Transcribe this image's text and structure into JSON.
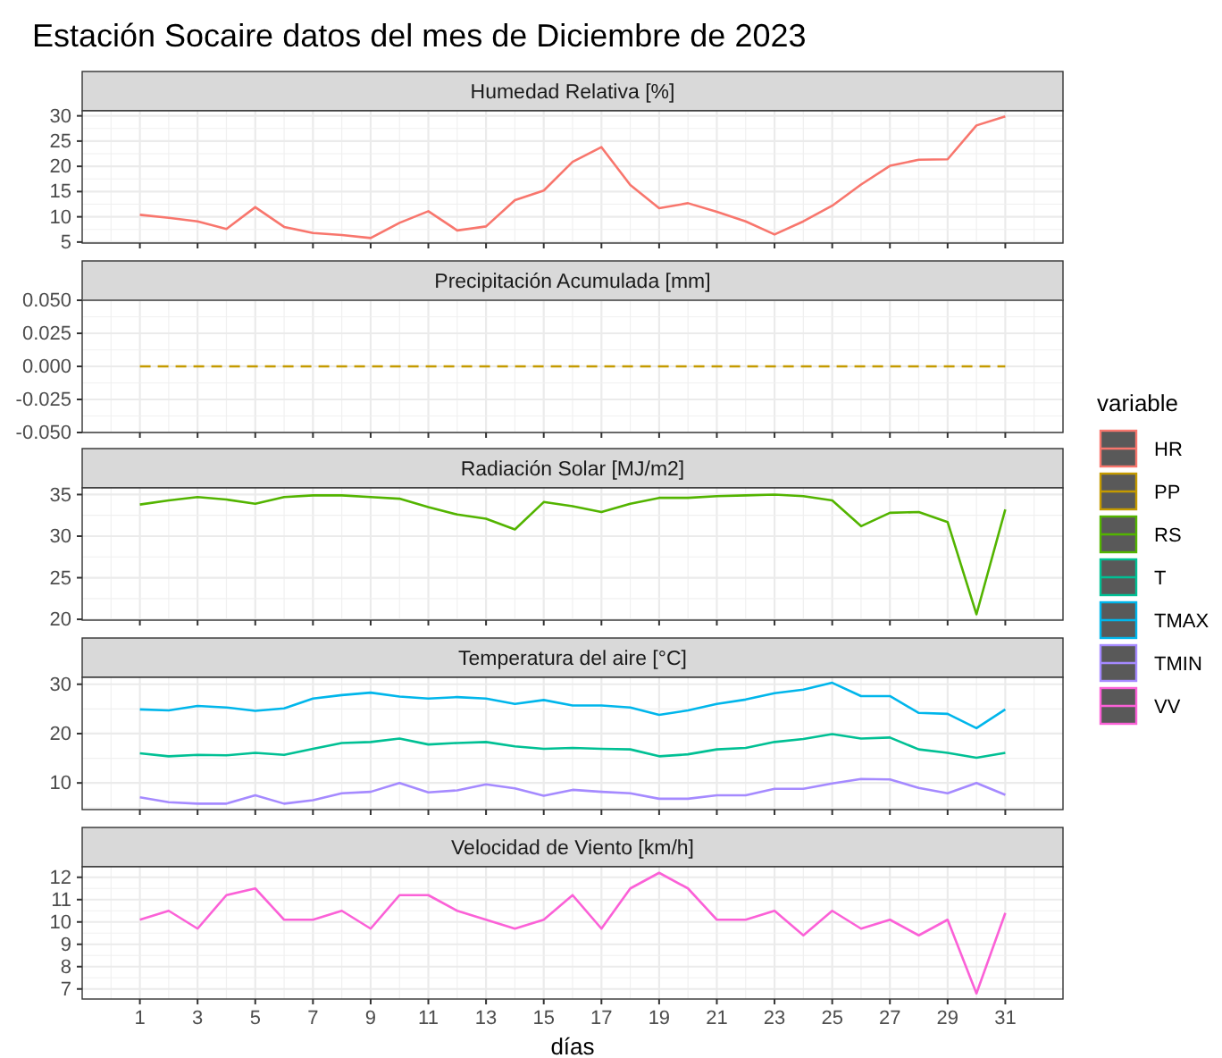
{
  "chart_data": [
    {
      "type": "line",
      "title": "Estación Socaire datos del mes de Diciembre de 2023",
      "subtitle": "Humedad Relativa [%]",
      "x": [
        1,
        2,
        3,
        4,
        5,
        6,
        7,
        8,
        9,
        10,
        11,
        12,
        13,
        14,
        15,
        16,
        17,
        18,
        19,
        20,
        21,
        22,
        23,
        24,
        25,
        26,
        27,
        28,
        29,
        30,
        31
      ],
      "xlim": [
        -1,
        33
      ],
      "xticks": [
        1,
        3,
        5,
        7,
        9,
        11,
        13,
        15,
        17,
        19,
        21,
        23,
        25,
        27,
        29,
        31
      ],
      "ylim": [
        4.8,
        31
      ],
      "yticks": [
        5,
        10,
        15,
        20,
        25,
        30
      ],
      "grid": true,
      "legend": "right",
      "legend_title": "variable",
      "tick_labels": "y",
      "series": [
        {
          "name": "HR",
          "color": "#f8766d",
          "values": [
            10.4,
            9.8,
            9.1,
            7.6,
            11.9,
            8.0,
            6.8,
            6.4,
            5.8,
            8.8,
            11.1,
            7.3,
            8.1,
            13.3,
            15.2,
            20.9,
            23.8,
            16.3,
            11.7,
            12.7,
            11.0,
            9.1,
            6.5,
            9.1,
            12.2,
            16.4,
            20.1,
            21.3,
            21.4,
            28.1,
            29.9
          ]
        }
      ]
    },
    {
      "type": "line",
      "title": "Precipitación Acumulada [mm]",
      "x": [
        1,
        2,
        3,
        4,
        5,
        6,
        7,
        8,
        9,
        10,
        11,
        12,
        13,
        14,
        15,
        16,
        17,
        18,
        19,
        20,
        21,
        22,
        23,
        24,
        25,
        26,
        27,
        28,
        29,
        30,
        31
      ],
      "xlim": [
        -1,
        33
      ],
      "xticks": [
        1,
        3,
        5,
        7,
        9,
        11,
        13,
        15,
        17,
        19,
        21,
        23,
        25,
        27,
        29,
        31
      ],
      "ylim": [
        -0.05,
        0.05
      ],
      "yticks": [
        {
          "value": -0.05,
          "label": "-0.050"
        },
        {
          "value": -0.025,
          "label": "-0.025"
        },
        {
          "value": 0,
          "label": "0.000"
        },
        {
          "value": 0.025,
          "label": "0.025"
        },
        {
          "value": 0.05,
          "label": "0.050"
        }
      ],
      "grid": true,
      "legend": "right",
      "tick_labels": "y",
      "series": [
        {
          "name": "PP",
          "color": "#c49a00",
          "line_style": "dashed",
          "values": [
            0,
            0,
            0,
            0,
            0,
            0,
            0,
            0,
            0,
            0,
            0,
            0,
            0,
            0,
            0,
            0,
            0,
            0,
            0,
            0,
            0,
            0,
            0,
            0,
            0,
            0,
            0,
            0,
            0,
            0,
            0
          ]
        }
      ]
    },
    {
      "type": "line",
      "title": "Radiación Solar [MJ/m2]",
      "x": [
        1,
        2,
        3,
        4,
        5,
        6,
        7,
        8,
        9,
        10,
        11,
        12,
        13,
        14,
        15,
        16,
        17,
        18,
        19,
        20,
        21,
        22,
        23,
        24,
        25,
        26,
        27,
        28,
        29,
        30,
        31
      ],
      "xlim": [
        -1,
        33
      ],
      "xticks": [
        1,
        3,
        5,
        7,
        9,
        11,
        13,
        15,
        17,
        19,
        21,
        23,
        25,
        27,
        29,
        31
      ],
      "ylim": [
        19.9,
        35.8
      ],
      "yticks": [
        20,
        25,
        30,
        35
      ],
      "grid": true,
      "legend": "right",
      "tick_labels": "y",
      "series": [
        {
          "name": "RS",
          "color": "#53b400",
          "values": [
            33.8,
            34.3,
            34.7,
            34.4,
            33.9,
            34.7,
            34.9,
            34.9,
            34.7,
            34.5,
            33.5,
            32.6,
            32.1,
            30.8,
            34.1,
            33.6,
            32.9,
            33.9,
            34.6,
            34.6,
            34.8,
            34.9,
            35.0,
            34.8,
            34.3,
            31.2,
            32.8,
            32.9,
            31.7,
            20.6,
            33.2
          ]
        }
      ]
    },
    {
      "type": "line",
      "title": "Temperatura del aire [°C]",
      "x": [
        1,
        2,
        3,
        4,
        5,
        6,
        7,
        8,
        9,
        10,
        11,
        12,
        13,
        14,
        15,
        16,
        17,
        18,
        19,
        20,
        21,
        22,
        23,
        24,
        25,
        26,
        27,
        28,
        29,
        30,
        31
      ],
      "xlim": [
        -1,
        33
      ],
      "xticks": [
        1,
        3,
        5,
        7,
        9,
        11,
        13,
        15,
        17,
        19,
        21,
        23,
        25,
        27,
        29,
        31
      ],
      "ylim": [
        4.6,
        31.4
      ],
      "yticks": [
        10,
        20,
        30
      ],
      "grid": true,
      "legend": "right",
      "tick_labels": "y",
      "series": [
        {
          "name": "T",
          "color": "#00c094",
          "values": [
            16.0,
            15.4,
            15.7,
            15.6,
            16.1,
            15.7,
            16.9,
            18.1,
            18.3,
            19.0,
            17.8,
            18.1,
            18.3,
            17.4,
            16.9,
            17.1,
            16.9,
            16.8,
            15.4,
            15.8,
            16.8,
            17.1,
            18.3,
            18.9,
            19.9,
            19.0,
            19.2,
            16.8,
            16.1,
            15.1,
            16.1
          ]
        },
        {
          "name": "TMAX",
          "color": "#00b6eb",
          "values": [
            24.9,
            24.7,
            25.6,
            25.3,
            24.6,
            25.1,
            27.1,
            27.8,
            28.3,
            27.5,
            27.1,
            27.4,
            27.1,
            26.0,
            26.8,
            25.7,
            25.7,
            25.3,
            23.8,
            24.7,
            26.0,
            26.9,
            28.2,
            28.9,
            30.3,
            27.6,
            27.6,
            24.2,
            24.0,
            21.1,
            24.9
          ]
        },
        {
          "name": "TMIN",
          "color": "#a58aff",
          "values": [
            7.1,
            6.1,
            5.8,
            5.8,
            7.5,
            5.8,
            6.5,
            7.9,
            8.2,
            10.0,
            8.1,
            8.5,
            9.7,
            8.9,
            7.4,
            8.6,
            8.2,
            7.9,
            6.8,
            6.8,
            7.5,
            7.5,
            8.8,
            8.8,
            9.9,
            10.8,
            10.7,
            9.0,
            7.9,
            10.0,
            7.6
          ]
        }
      ]
    },
    {
      "type": "line",
      "title": "Velocidad de Viento [km/h]",
      "xlabel": "días",
      "x": [
        1,
        2,
        3,
        4,
        5,
        6,
        7,
        8,
        9,
        10,
        11,
        12,
        13,
        14,
        15,
        16,
        17,
        18,
        19,
        20,
        21,
        22,
        23,
        24,
        25,
        26,
        27,
        28,
        29,
        30,
        31
      ],
      "xlim": [
        -1,
        33
      ],
      "xticks": [
        1,
        3,
        5,
        7,
        9,
        11,
        13,
        15,
        17,
        19,
        21,
        23,
        25,
        27,
        29,
        31
      ],
      "ylim": [
        6.55,
        12.47
      ],
      "yticks": [
        7,
        8,
        9,
        10,
        11,
        12
      ],
      "grid": true,
      "legend": "right",
      "series": [
        {
          "name": "VV",
          "color": "#fb61d7",
          "values": [
            10.1,
            10.5,
            9.7,
            11.2,
            11.5,
            10.1,
            10.1,
            10.5,
            9.7,
            11.2,
            11.2,
            10.5,
            10.1,
            9.7,
            10.1,
            11.2,
            9.7,
            11.5,
            12.2,
            11.5,
            10.1,
            10.1,
            10.5,
            9.4,
            10.5,
            9.7,
            10.1,
            9.4,
            10.1,
            6.8,
            10.4
          ]
        }
      ]
    }
  ]
}
